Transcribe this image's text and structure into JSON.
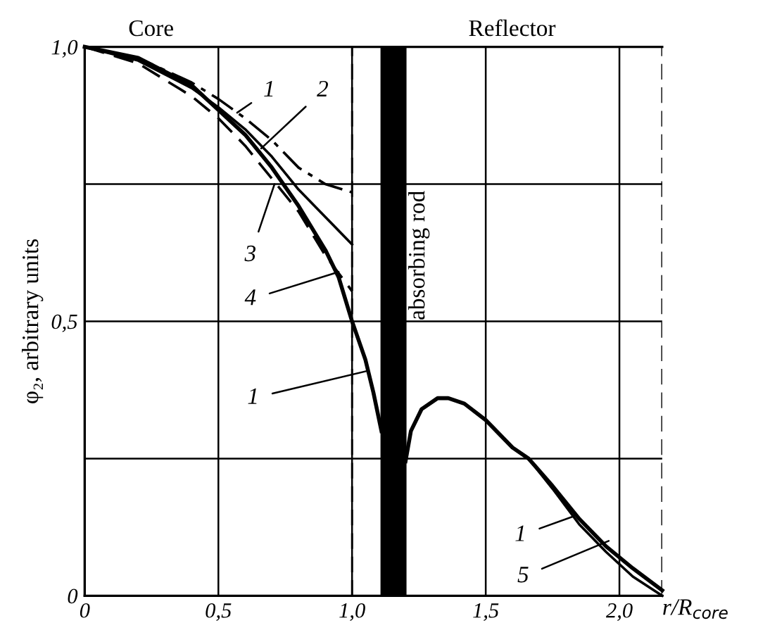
{
  "chart_data": {
    "type": "line",
    "xlabel": "r/R$_{core}$",
    "ylabel": "φ₂, arbitrary units",
    "xlim": [
      0,
      2.16
    ],
    "ylim": [
      0,
      1.0
    ],
    "xticks": [
      {
        "value": 0,
        "label": "0"
      },
      {
        "value": 0.5,
        "label": "0,5"
      },
      {
        "value": 1.0,
        "label": "1,0"
      },
      {
        "value": 1.5,
        "label": "1,5"
      },
      {
        "value": 2.0,
        "label": "2,0"
      }
    ],
    "yticks": [
      {
        "value": 0,
        "label": "0"
      },
      {
        "value": 0.25,
        "label": null
      },
      {
        "value": 0.5,
        "label": "0,5"
      },
      {
        "value": 0.75,
        "label": null
      },
      {
        "value": 1.0,
        "label": "1,0"
      }
    ],
    "grid": true,
    "series": [
      {
        "color": "#000000",
        "line_style": "dashdot",
        "x": [
          0,
          0.2,
          0.4,
          0.5,
          0.6,
          0.7,
          0.8,
          0.9,
          1.0
        ],
        "values": [
          1.0,
          0.98,
          0.935,
          0.905,
          0.87,
          0.83,
          0.78,
          0.75,
          0.735
        ]
      },
      {
        "color": "#000000",
        "line_style": "solid",
        "x": [
          0,
          0.2,
          0.4,
          0.5,
          0.6,
          0.7,
          0.8,
          0.9,
          1.0
        ],
        "values": [
          1.0,
          0.975,
          0.925,
          0.89,
          0.85,
          0.8,
          0.74,
          0.69,
          0.64
        ]
      },
      {
        "color": "#000000",
        "line_style": "dashed",
        "x": [
          0,
          0.2,
          0.4,
          0.5,
          0.6,
          0.7,
          0.8,
          0.9,
          1.0
        ],
        "values": [
          1.0,
          0.97,
          0.91,
          0.87,
          0.82,
          0.76,
          0.7,
          0.62,
          0.555
        ]
      },
      {
        "color": "#000000",
        "line_style": "solid",
        "x": [
          0,
          0.2,
          0.4,
          0.5,
          0.6,
          0.7,
          0.8,
          0.9,
          0.95,
          1.0,
          1.05,
          1.08,
          1.11
        ],
        "values": [
          1.0,
          0.98,
          0.93,
          0.885,
          0.84,
          0.78,
          0.71,
          0.63,
          0.58,
          0.5,
          0.43,
          0.37,
          0.3
        ]
      },
      {
        "color": "#000000",
        "line_style": "solid",
        "x": [
          1.2,
          1.22,
          1.26,
          1.32,
          1.36,
          1.42,
          1.5,
          1.6,
          1.66,
          1.75,
          1.85,
          1.95,
          2.05,
          2.16
        ],
        "values": [
          0.245,
          0.3,
          0.34,
          0.36,
          0.36,
          0.35,
          0.32,
          0.27,
          0.25,
          0.2,
          0.14,
          0.09,
          0.05,
          0.01
        ]
      },
      {
        "color": "#000000",
        "line_style": "solid",
        "x": [
          1.66,
          1.75,
          1.85,
          1.95,
          2.05,
          2.16
        ],
        "values": [
          0.25,
          0.195,
          0.13,
          0.08,
          0.035,
          0.0
        ]
      }
    ],
    "ref_lines": [
      {
        "axis": "x",
        "value": 1.0,
        "line_style": "dashed",
        "color": "#000000"
      },
      {
        "axis": "x",
        "value": 2.16,
        "line_style": "dashed",
        "color": "#000000"
      }
    ],
    "bands": [
      {
        "axis": "x",
        "from": 1.11,
        "to": 1.2,
        "label": "absorbing rod",
        "color": "#000000"
      }
    ],
    "annotations": [
      "Core",
      "Reflector",
      {
        "text": "1",
        "x": 0.57,
        "y": 0.88
      },
      {
        "text": "2",
        "x": 0.66,
        "y": 0.815
      },
      {
        "text": "3",
        "x": 0.71,
        "y": 0.75
      },
      {
        "text": "4",
        "x": 0.95,
        "y": 0.59
      },
      {
        "text": "1",
        "x": 1.06,
        "y": 0.41
      },
      {
        "text": "1",
        "x": 1.83,
        "y": 0.145
      },
      {
        "text": "5",
        "x": 1.96,
        "y": 0.1
      }
    ]
  }
}
